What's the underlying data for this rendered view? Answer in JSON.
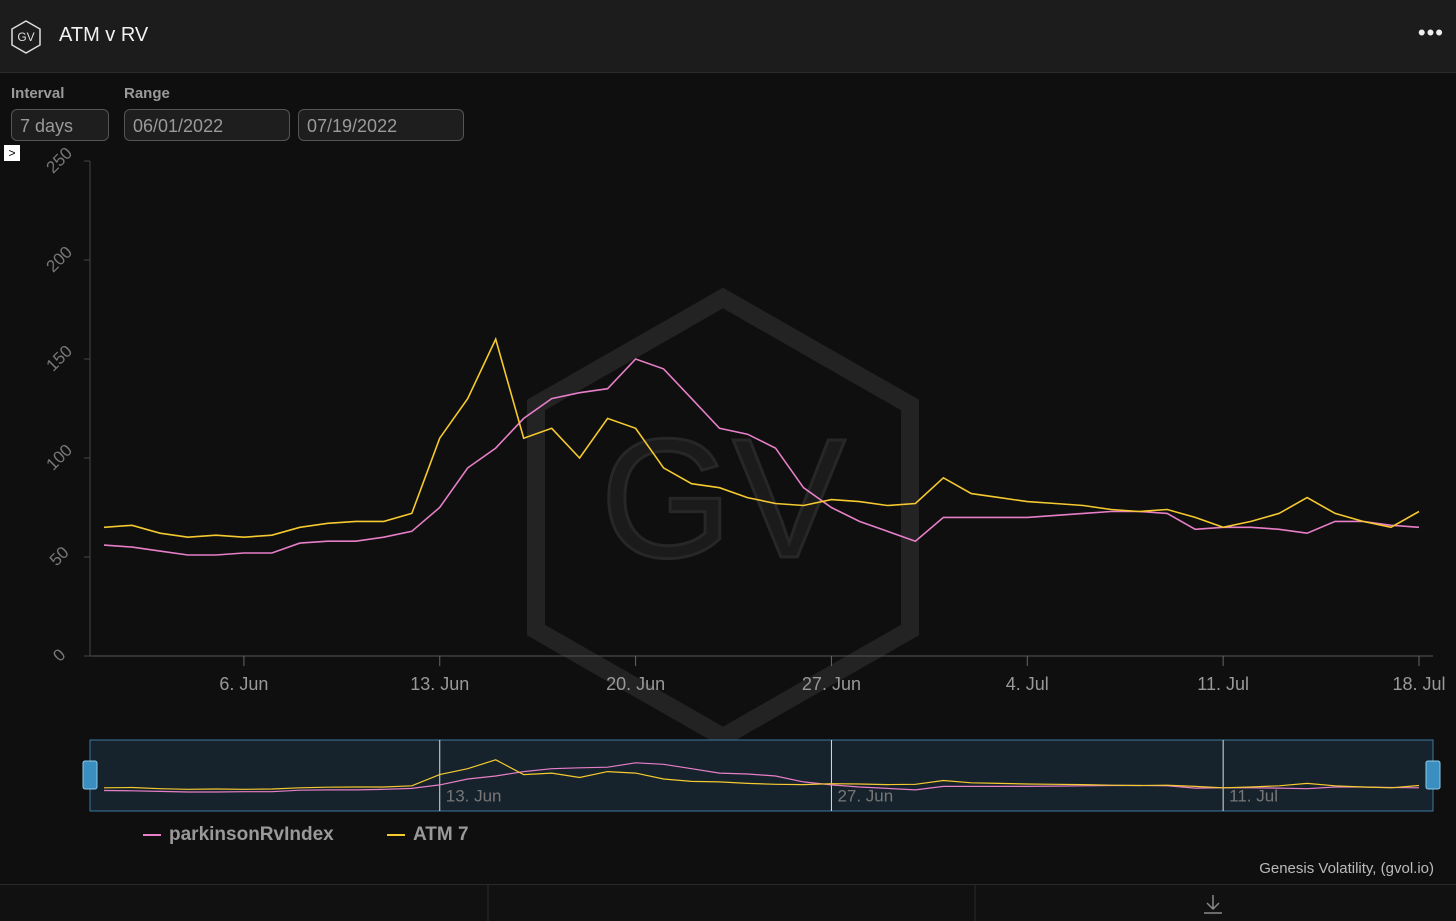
{
  "header": {
    "logo": "GV",
    "title": "ATM v RV"
  },
  "controls": {
    "interval_label": "Interval",
    "interval": "7 days",
    "range_label": "Range",
    "range_start": "06/01/2022",
    "range_end": "07/19/2022"
  },
  "chart_data": {
    "type": "line",
    "watermark": "GV",
    "x": [
      "2022-06-01",
      "2022-06-02",
      "2022-06-03",
      "2022-06-04",
      "2022-06-05",
      "2022-06-06",
      "2022-06-07",
      "2022-06-08",
      "2022-06-09",
      "2022-06-10",
      "2022-06-11",
      "2022-06-12",
      "2022-06-13",
      "2022-06-14",
      "2022-06-15",
      "2022-06-16",
      "2022-06-17",
      "2022-06-18",
      "2022-06-19",
      "2022-06-20",
      "2022-06-21",
      "2022-06-22",
      "2022-06-23",
      "2022-06-24",
      "2022-06-25",
      "2022-06-26",
      "2022-06-27",
      "2022-06-28",
      "2022-06-29",
      "2022-06-30",
      "2022-07-01",
      "2022-07-02",
      "2022-07-03",
      "2022-07-04",
      "2022-07-05",
      "2022-07-06",
      "2022-07-07",
      "2022-07-08",
      "2022-07-09",
      "2022-07-10",
      "2022-07-11",
      "2022-07-12",
      "2022-07-13",
      "2022-07-14",
      "2022-07-15",
      "2022-07-16",
      "2022-07-17",
      "2022-07-18"
    ],
    "series": [
      {
        "name": "parkinsonRvIndex",
        "color": "#e77fc8",
        "values": [
          56,
          55,
          53,
          51,
          51,
          52,
          52,
          57,
          58,
          58,
          60,
          63,
          75,
          95,
          105,
          120,
          130,
          133,
          135,
          150,
          145,
          130,
          115,
          112,
          105,
          85,
          75,
          68,
          63,
          58,
          70,
          70,
          70,
          70,
          71,
          72,
          73,
          73,
          72,
          64,
          65,
          65,
          64,
          62,
          68,
          68,
          66,
          65
        ]
      },
      {
        "name": "ATM 7",
        "color": "#f5c930",
        "values": [
          65,
          66,
          62,
          60,
          61,
          60,
          61,
          65,
          67,
          68,
          68,
          72,
          110,
          130,
          160,
          110,
          115,
          100,
          120,
          115,
          95,
          87,
          85,
          80,
          77,
          76,
          79,
          78,
          76,
          77,
          90,
          82,
          80,
          78,
          77,
          76,
          74,
          73,
          74,
          70,
          65,
          68,
          72,
          80,
          72,
          68,
          65,
          73
        ]
      }
    ],
    "xlim": [
      "2022-06-01",
      "2022-07-18"
    ],
    "xticks": [
      {
        "value": "2022-06-06",
        "label": "6. Jun"
      },
      {
        "value": "2022-06-13",
        "label": "13. Jun"
      },
      {
        "value": "2022-06-20",
        "label": "20. Jun"
      },
      {
        "value": "2022-06-27",
        "label": "27. Jun"
      },
      {
        "value": "2022-07-04",
        "label": "4. Jul"
      },
      {
        "value": "2022-07-11",
        "label": "11. Jul"
      },
      {
        "value": "2022-07-18",
        "label": "18. Jul"
      }
    ],
    "ylim": [
      0,
      250
    ],
    "yticks": [
      0,
      50,
      100,
      150,
      200,
      250
    ],
    "navigator_xticks": [
      {
        "value": "2022-06-13",
        "label": "13. Jun"
      },
      {
        "value": "2022-06-27",
        "label": "27. Jun"
      },
      {
        "value": "2022-07-11",
        "label": "11. Jul"
      }
    ],
    "legend": "bottom-left",
    "credits": "Genesis Volatility, (gvol.io)"
  }
}
